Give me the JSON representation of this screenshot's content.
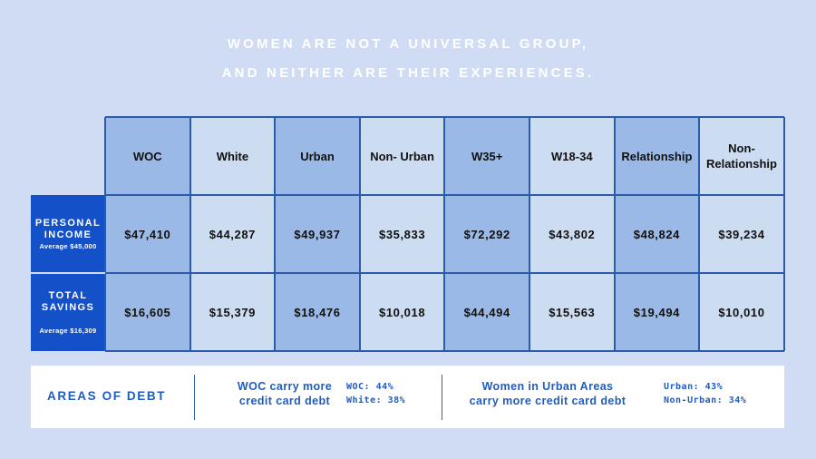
{
  "headline": {
    "line1": "WOMEN ARE NOT A UNIVERSAL GROUP,",
    "line2": "AND NEITHER ARE THEIR EXPERIENCES."
  },
  "chart_data": {
    "type": "table",
    "columns": [
      "WOC",
      "White",
      "Urban",
      "Non- Urban",
      "W35+",
      "W18-34",
      "Relationship",
      "Non-Relationship"
    ],
    "columns_display": [
      "WOC",
      "White",
      "Urban",
      "Non- Urban",
      "W35+",
      "W18-34",
      "Relationship",
      "Non-\nRelationship"
    ],
    "rows": [
      {
        "label_line1": "PERSONAL",
        "label_line2": "INCOME",
        "sublabel": "Average $45,000",
        "values": [
          47410,
          44287,
          49937,
          35833,
          72292,
          43802,
          48824,
          39234
        ],
        "display": [
          "$47,410",
          "$44,287",
          "$49,937",
          "$35,833",
          "$72,292",
          "$43,802",
          "$48,824",
          "$39,234"
        ]
      },
      {
        "label_line1": "TOTAL",
        "label_line2": "SAVINGS",
        "sublabel": "Average $16,309",
        "values": [
          16605,
          15379,
          18476,
          10018,
          44494,
          15563,
          19494,
          10010
        ],
        "display": [
          "$16,605",
          "$15,379",
          "$18,476",
          "$10,018",
          "$44,494",
          "$15,563",
          "$19,494",
          "$10,010"
        ]
      }
    ],
    "highlighted_columns": [
      0,
      2,
      4,
      6
    ],
    "colors": {
      "light_cell": "#ccdcf1",
      "dark_cell": "#9bb9e6",
      "row_label_bg": "#1450c8",
      "grid": "#2c5ba8"
    }
  },
  "debt": {
    "title": "AREAS OF DEBT",
    "claims": [
      {
        "text": "WOC carry more\ncredit card debt",
        "stats": [
          "WOC: 44%",
          "White: 38%"
        ]
      },
      {
        "text": "Women in Urban Areas\ncarry more credit card debt",
        "stats": [
          "Urban: 43%",
          "Non-Urban: 34%"
        ]
      }
    ],
    "color": "#1f5cc2"
  }
}
